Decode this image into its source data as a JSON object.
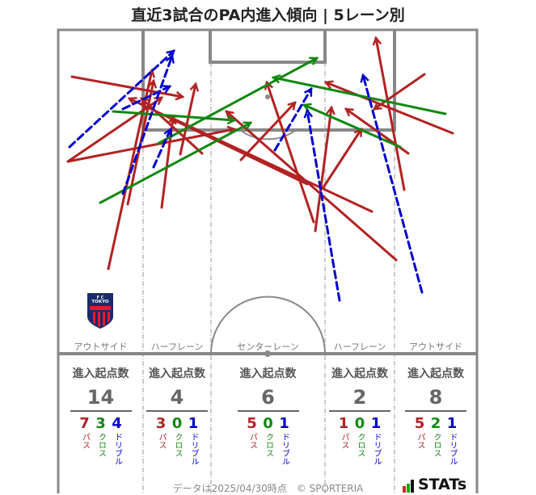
{
  "title": "直近3試合のPA内進入傾向 | 5レーン別",
  "colors": {
    "pass": "#b22222",
    "cross": "#118811",
    "dribble": "#0000cc",
    "lines": "#888888"
  },
  "team": {
    "crest_text_top": "F C",
    "crest_text": "TOKYO"
  },
  "lanes": [
    {
      "label": "アウトサイド",
      "stat_head": "進入起点数",
      "total": "14",
      "pass": "7",
      "cross": "3",
      "dribble": "4"
    },
    {
      "label": "ハーフレーン",
      "stat_head": "進入起点数",
      "total": "4",
      "pass": "3",
      "cross": "0",
      "dribble": "1"
    },
    {
      "label": "センターレーン",
      "stat_head": "進入起点数",
      "total": "6",
      "pass": "5",
      "cross": "0",
      "dribble": "1"
    },
    {
      "label": "ハーフレーン",
      "stat_head": "進入起点数",
      "total": "2",
      "pass": "1",
      "cross": "0",
      "dribble": "1"
    },
    {
      "label": "アウトサイド",
      "stat_head": "進入起点数",
      "total": "8",
      "pass": "5",
      "cross": "2",
      "dribble": "1"
    }
  ],
  "legend_labels": {
    "pass": "パス",
    "cross": "クロス",
    "dribble": "ドリブル"
  },
  "footer": {
    "note": "データは2025/04/30時点　© SPORTERIA",
    "logo": "STATs"
  },
  "chart_data": {
    "type": "scatter",
    "title": "直近3試合のPA内進入傾向 | 5レーン別",
    "categories": [
      "アウトサイド(左)",
      "ハーフレーン(左)",
      "センターレーン",
      "ハーフレーン(右)",
      "アウトサイド(右)"
    ],
    "series": [
      {
        "name": "パス",
        "values": [
          7,
          3,
          5,
          1,
          5
        ]
      },
      {
        "name": "クロス",
        "values": [
          3,
          0,
          0,
          0,
          2
        ]
      },
      {
        "name": "ドリブル",
        "values": [
          4,
          1,
          1,
          1,
          1
        ]
      }
    ],
    "totals": [
      14,
      4,
      6,
      2,
      8
    ],
    "arrows_pixel_coords_note": "start->end in screenshot px",
    "arrows": [
      {
        "type": "pass",
        "from": [
          89,
          95
        ],
        "to": [
          226,
          120
        ]
      },
      {
        "type": "pass",
        "from": [
          84,
          200
        ],
        "to": [
          200,
          121
        ]
      },
      {
        "type": "pass",
        "from": [
          84,
          200
        ],
        "to": [
          290,
          160
        ]
      },
      {
        "type": "pass",
        "from": [
          134,
          333
        ],
        "to": [
          188,
          87
        ]
      },
      {
        "type": "pass",
        "from": [
          158,
          253
        ],
        "to": [
          190,
          100
        ]
      },
      {
        "type": "pass",
        "from": [
          200,
          257
        ],
        "to": [
          214,
          145
        ]
      },
      {
        "type": "pass",
        "from": [
          223,
          191
        ],
        "to": [
          242,
          104
        ]
      },
      {
        "type": "pass",
        "from": [
          250,
          190
        ],
        "to": [
          175,
          122
        ]
      },
      {
        "type": "pass",
        "from": [
          380,
          228
        ],
        "to": [
          160,
          122
        ]
      },
      {
        "type": "pass",
        "from": [
          460,
          262
        ],
        "to": [
          210,
          145
        ]
      },
      {
        "type": "pass",
        "from": [
          490,
          322
        ],
        "to": [
          280,
          138
        ]
      },
      {
        "type": "pass",
        "from": [
          390,
          286
        ],
        "to": [
          410,
          133
        ]
      },
      {
        "type": "pass",
        "from": [
          298,
          198
        ],
        "to": [
          365,
          127
        ]
      },
      {
        "type": "pass",
        "from": [
          400,
          232
        ],
        "to": [
          447,
          160
        ]
      },
      {
        "type": "pass",
        "from": [
          388,
          275
        ],
        "to": [
          330,
          102
        ]
      },
      {
        "type": "pass",
        "from": [
          500,
          235
        ],
        "to": [
          465,
          47
        ]
      },
      {
        "type": "pass",
        "from": [
          525,
          92
        ],
        "to": [
          463,
          135
        ]
      },
      {
        "type": "pass",
        "from": [
          560,
          165
        ],
        "to": [
          403,
          102
        ]
      },
      {
        "type": "pass",
        "from": [
          505,
          190
        ],
        "to": [
          428,
          135
        ]
      },
      {
        "type": "cross",
        "from": [
          124,
          251
        ],
        "to": [
          310,
          152
        ]
      },
      {
        "type": "cross",
        "from": [
          140,
          138
        ],
        "to": [
          290,
          149
        ]
      },
      {
        "type": "cross",
        "from": [
          195,
          178
        ],
        "to": [
          392,
          72
        ]
      },
      {
        "type": "cross",
        "from": [
          551,
          141
        ],
        "to": [
          338,
          96
        ]
      },
      {
        "type": "cross",
        "from": [
          495,
          182
        ],
        "to": [
          376,
          130
        ]
      },
      {
        "type": "dribble",
        "from": [
          86,
          182
        ],
        "to": [
          215,
          63
        ]
      },
      {
        "type": "dribble",
        "from": [
          152,
          240
        ],
        "to": [
          213,
          69
        ]
      },
      {
        "type": "dribble",
        "from": [
          152,
          135
        ],
        "to": [
          210,
          107
        ]
      },
      {
        "type": "dribble",
        "from": [
          190,
          207
        ],
        "to": [
          211,
          160
        ]
      },
      {
        "type": "dribble",
        "from": [
          340,
          186
        ],
        "to": [
          385,
          110
        ]
      },
      {
        "type": "dribble",
        "from": [
          420,
          372
        ],
        "to": [
          380,
          137
        ]
      },
      {
        "type": "dribble",
        "from": [
          522,
          362
        ],
        "to": [
          449,
          93
        ]
      }
    ]
  }
}
